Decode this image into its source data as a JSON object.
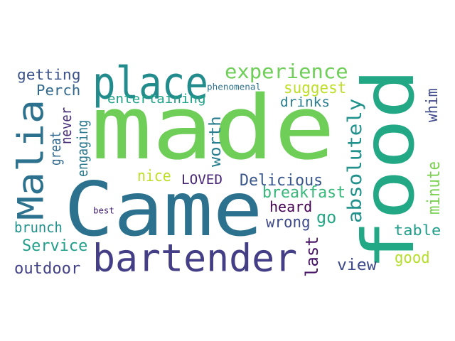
{
  "words": [
    {
      "text": "made",
      "color": "#6ece58"
    },
    {
      "text": "Came",
      "color": "#2c728e"
    },
    {
      "text": "food",
      "color": "#22a884"
    },
    {
      "text": "place",
      "color": "#228c8d"
    },
    {
      "text": "bartender",
      "color": "#433e85"
    },
    {
      "text": "Malia",
      "color": "#2c728e"
    },
    {
      "text": "experience",
      "color": "#6ece58"
    },
    {
      "text": "absolutely",
      "color": "#21918c"
    },
    {
      "text": "getting",
      "color": "#3b528b"
    },
    {
      "text": "Perch",
      "color": "#31688e"
    },
    {
      "text": "entertaining",
      "color": "#1fa187"
    },
    {
      "text": "phenomenal",
      "color": "#2c728e"
    },
    {
      "text": "suggest",
      "color": "#bddf26"
    },
    {
      "text": "drinks",
      "color": "#287d8e"
    },
    {
      "text": "whim",
      "color": "#3e4989"
    },
    {
      "text": "never",
      "color": "#472c7a"
    },
    {
      "text": "great",
      "color": "#31688e"
    },
    {
      "text": "engaging",
      "color": "#2a788e"
    },
    {
      "text": "worth",
      "color": "#287d8e"
    },
    {
      "text": "nice",
      "color": "#bddf26"
    },
    {
      "text": "LOVED",
      "color": "#482475"
    },
    {
      "text": "Delicious",
      "color": "#39568c"
    },
    {
      "text": "breakfast",
      "color": "#35b779"
    },
    {
      "text": "heard",
      "color": "#440154"
    },
    {
      "text": "minute",
      "color": "#7ad151"
    },
    {
      "text": "best",
      "color": "#482475"
    },
    {
      "text": "go",
      "color": "#22a884"
    },
    {
      "text": "brunch",
      "color": "#21918c"
    },
    {
      "text": "wrong",
      "color": "#3e4989"
    },
    {
      "text": "table",
      "color": "#1f9e89"
    },
    {
      "text": "Service",
      "color": "#1f9e89"
    },
    {
      "text": "last",
      "color": "#471365"
    },
    {
      "text": "good",
      "color": "#b5de2b"
    },
    {
      "text": "outdoor",
      "color": "#424086"
    },
    {
      "text": "view",
      "color": "#3e4989"
    }
  ]
}
